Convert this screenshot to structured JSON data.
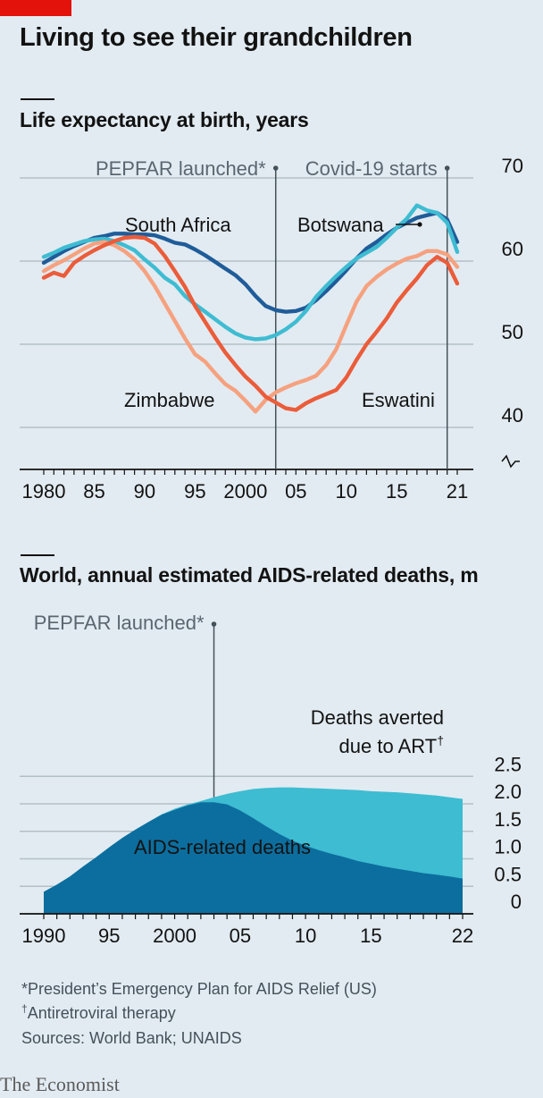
{
  "header": {
    "title": "Living to see their grandchildren"
  },
  "chart_data": [
    {
      "type": "line",
      "title": "Life expectancy at birth, years",
      "xlabel": "",
      "ylabel": "",
      "xlim": [
        1979,
        2022
      ],
      "ylim": [
        38,
        70
      ],
      "y_ticks": [
        40,
        50,
        60,
        70
      ],
      "y_tick_labels": [
        "40",
        "50",
        "60",
        "70"
      ],
      "x_ticks": [
        1980,
        1985,
        1990,
        1995,
        2000,
        2005,
        2010,
        2015,
        2021
      ],
      "x_tick_labels": [
        "1980",
        "85",
        "90",
        "95",
        "2000",
        "05",
        "10",
        "15",
        "21"
      ],
      "axis_break": true,
      "grid": true,
      "annotations": [
        {
          "label": "PEPFAR launched*",
          "x": 2003
        },
        {
          "label": "Covid-19 starts",
          "x": 2020
        }
      ],
      "series": [
        {
          "name": "South Africa",
          "color": "#1f5c99",
          "x": [
            1980,
            1981,
            1982,
            1983,
            1984,
            1985,
            1986,
            1987,
            1988,
            1989,
            1990,
            1991,
            1992,
            1993,
            1994,
            1995,
            1996,
            1997,
            1998,
            1999,
            2000,
            2001,
            2002,
            2003,
            2004,
            2005,
            2006,
            2007,
            2008,
            2009,
            2010,
            2011,
            2012,
            2013,
            2014,
            2015,
            2016,
            2017,
            2018,
            2019,
            2020,
            2021
          ],
          "values": [
            59.8,
            60.5,
            61.2,
            61.8,
            62.3,
            62.8,
            63.0,
            63.3,
            63.3,
            63.2,
            63.2,
            63.1,
            62.7,
            62.2,
            62.0,
            61.4,
            60.7,
            59.9,
            59.1,
            58.3,
            57.2,
            55.8,
            54.6,
            54.1,
            53.9,
            54.0,
            54.4,
            55.3,
            56.4,
            57.6,
            58.9,
            60.3,
            61.5,
            62.3,
            63.2,
            64.0,
            64.6,
            65.2,
            65.5,
            65.8,
            65.0,
            62.3
          ]
        },
        {
          "name": "Botswana",
          "color": "#3ebcd2",
          "x": [
            1980,
            1981,
            1982,
            1983,
            1984,
            1985,
            1986,
            1987,
            1988,
            1989,
            1990,
            1991,
            1992,
            1993,
            1994,
            1995,
            1996,
            1997,
            1998,
            1999,
            2000,
            2001,
            2002,
            2003,
            2004,
            2005,
            2006,
            2007,
            2008,
            2009,
            2010,
            2011,
            2012,
            2013,
            2014,
            2015,
            2016,
            2017,
            2018,
            2019,
            2020,
            2021
          ],
          "values": [
            60.5,
            61.0,
            61.6,
            62.0,
            62.4,
            62.6,
            62.7,
            62.4,
            61.9,
            61.3,
            60.2,
            59.2,
            58.0,
            57.2,
            55.8,
            54.8,
            53.9,
            53.0,
            52.1,
            51.3,
            50.8,
            50.6,
            50.7,
            51.1,
            51.8,
            52.7,
            54.0,
            55.7,
            57.0,
            58.2,
            59.3,
            60.3,
            61.0,
            61.7,
            62.8,
            64.0,
            65.1,
            66.7,
            66.1,
            65.8,
            64.6,
            61.1
          ]
        },
        {
          "name": "Zimbabwe",
          "color": "#f6a17f",
          "x": [
            1980,
            1981,
            1982,
            1983,
            1984,
            1985,
            1986,
            1987,
            1988,
            1989,
            1990,
            1991,
            1992,
            1993,
            1994,
            1995,
            1996,
            1997,
            1998,
            1999,
            2000,
            2001,
            2002,
            2003,
            2004,
            2005,
            2006,
            2007,
            2008,
            2009,
            2010,
            2011,
            2012,
            2013,
            2014,
            2015,
            2016,
            2017,
            2018,
            2019,
            2020,
            2021
          ],
          "values": [
            58.8,
            59.5,
            60.1,
            60.8,
            61.5,
            62.1,
            62.3,
            61.9,
            61.2,
            60.2,
            58.8,
            57.0,
            54.9,
            52.8,
            50.7,
            48.8,
            47.9,
            46.5,
            45.2,
            44.4,
            43.2,
            41.9,
            43.3,
            44.2,
            44.8,
            45.3,
            45.7,
            46.2,
            47.5,
            49.4,
            52.3,
            55.1,
            57.0,
            58.1,
            59.0,
            59.7,
            60.3,
            60.6,
            61.2,
            61.2,
            60.8,
            59.3
          ]
        },
        {
          "name": "Eswatini",
          "color": "#eb5c3a",
          "x": [
            1980,
            1981,
            1982,
            1983,
            1984,
            1985,
            1986,
            1987,
            1988,
            1989,
            1990,
            1991,
            1992,
            1993,
            1994,
            1995,
            1996,
            1997,
            1998,
            1999,
            2000,
            2001,
            2002,
            2003,
            2004,
            2005,
            2006,
            2007,
            2008,
            2009,
            2010,
            2011,
            2012,
            2013,
            2014,
            2015,
            2016,
            2017,
            2018,
            2019,
            2020,
            2021
          ],
          "values": [
            58.0,
            58.6,
            58.2,
            59.8,
            60.6,
            61.3,
            61.9,
            62.4,
            62.8,
            62.9,
            62.8,
            62.1,
            60.6,
            58.8,
            56.9,
            54.6,
            52.7,
            50.8,
            49.0,
            47.5,
            46.1,
            45.0,
            43.7,
            43.0,
            42.3,
            42.1,
            42.9,
            43.5,
            44.0,
            44.5,
            46.0,
            48.1,
            50.0,
            51.5,
            53.1,
            55.0,
            56.5,
            57.9,
            59.5,
            60.5,
            59.8,
            57.3
          ]
        }
      ]
    },
    {
      "type": "area",
      "title": "World, annual estimated AIDS-related deaths, m",
      "xlabel": "",
      "ylabel": "",
      "xlim": [
        1989,
        2023
      ],
      "ylim": [
        0,
        2.5
      ],
      "y_ticks": [
        0,
        0.5,
        1.0,
        1.5,
        2.0,
        2.5
      ],
      "y_tick_labels": [
        "0",
        "0.5",
        "1.0",
        "1.5",
        "2.0",
        "2.5"
      ],
      "x_ticks": [
        1990,
        1995,
        2000,
        2005,
        2010,
        2015,
        2022
      ],
      "x_tick_labels": [
        "1990",
        "95",
        "2000",
        "05",
        "10",
        "15",
        "22"
      ],
      "grid": true,
      "annotations": [
        {
          "label": "PEPFAR launched*",
          "x": 2003
        }
      ],
      "x": [
        1990,
        1991,
        1992,
        1993,
        1994,
        1995,
        1996,
        1997,
        1998,
        1999,
        2000,
        2001,
        2002,
        2003,
        2004,
        2005,
        2006,
        2007,
        2008,
        2009,
        2010,
        2011,
        2012,
        2013,
        2014,
        2015,
        2016,
        2017,
        2018,
        2019,
        2020,
        2021,
        2022
      ],
      "series": [
        {
          "name": "Deaths averted due to ART",
          "label_html_sup": "†",
          "color": "#3ebcd2",
          "total_values": [
            0.4,
            0.53,
            0.68,
            0.86,
            1.03,
            1.21,
            1.38,
            1.53,
            1.67,
            1.81,
            1.91,
            1.99,
            2.05,
            2.12,
            2.18,
            2.23,
            2.27,
            2.29,
            2.3,
            2.3,
            2.29,
            2.28,
            2.27,
            2.26,
            2.25,
            2.23,
            2.22,
            2.21,
            2.19,
            2.17,
            2.15,
            2.12,
            2.09
          ]
        },
        {
          "name": "AIDS-related deaths",
          "color": "#0c6e9e",
          "values": [
            0.4,
            0.53,
            0.68,
            0.86,
            1.03,
            1.21,
            1.38,
            1.53,
            1.67,
            1.8,
            1.89,
            1.97,
            2.03,
            2.03,
            1.99,
            1.88,
            1.74,
            1.59,
            1.45,
            1.33,
            1.24,
            1.16,
            1.09,
            1.03,
            0.96,
            0.91,
            0.86,
            0.82,
            0.78,
            0.74,
            0.71,
            0.68,
            0.64
          ]
        }
      ]
    }
  ],
  "footnotes": {
    "pepfar": "*President’s Emergency Plan for AIDS Relief (US)",
    "art_mark": "†",
    "art": "Antiretroviral therapy",
    "sources": "Sources: World Bank; UNAIDS"
  },
  "brand": {
    "logo": "The Economist"
  }
}
